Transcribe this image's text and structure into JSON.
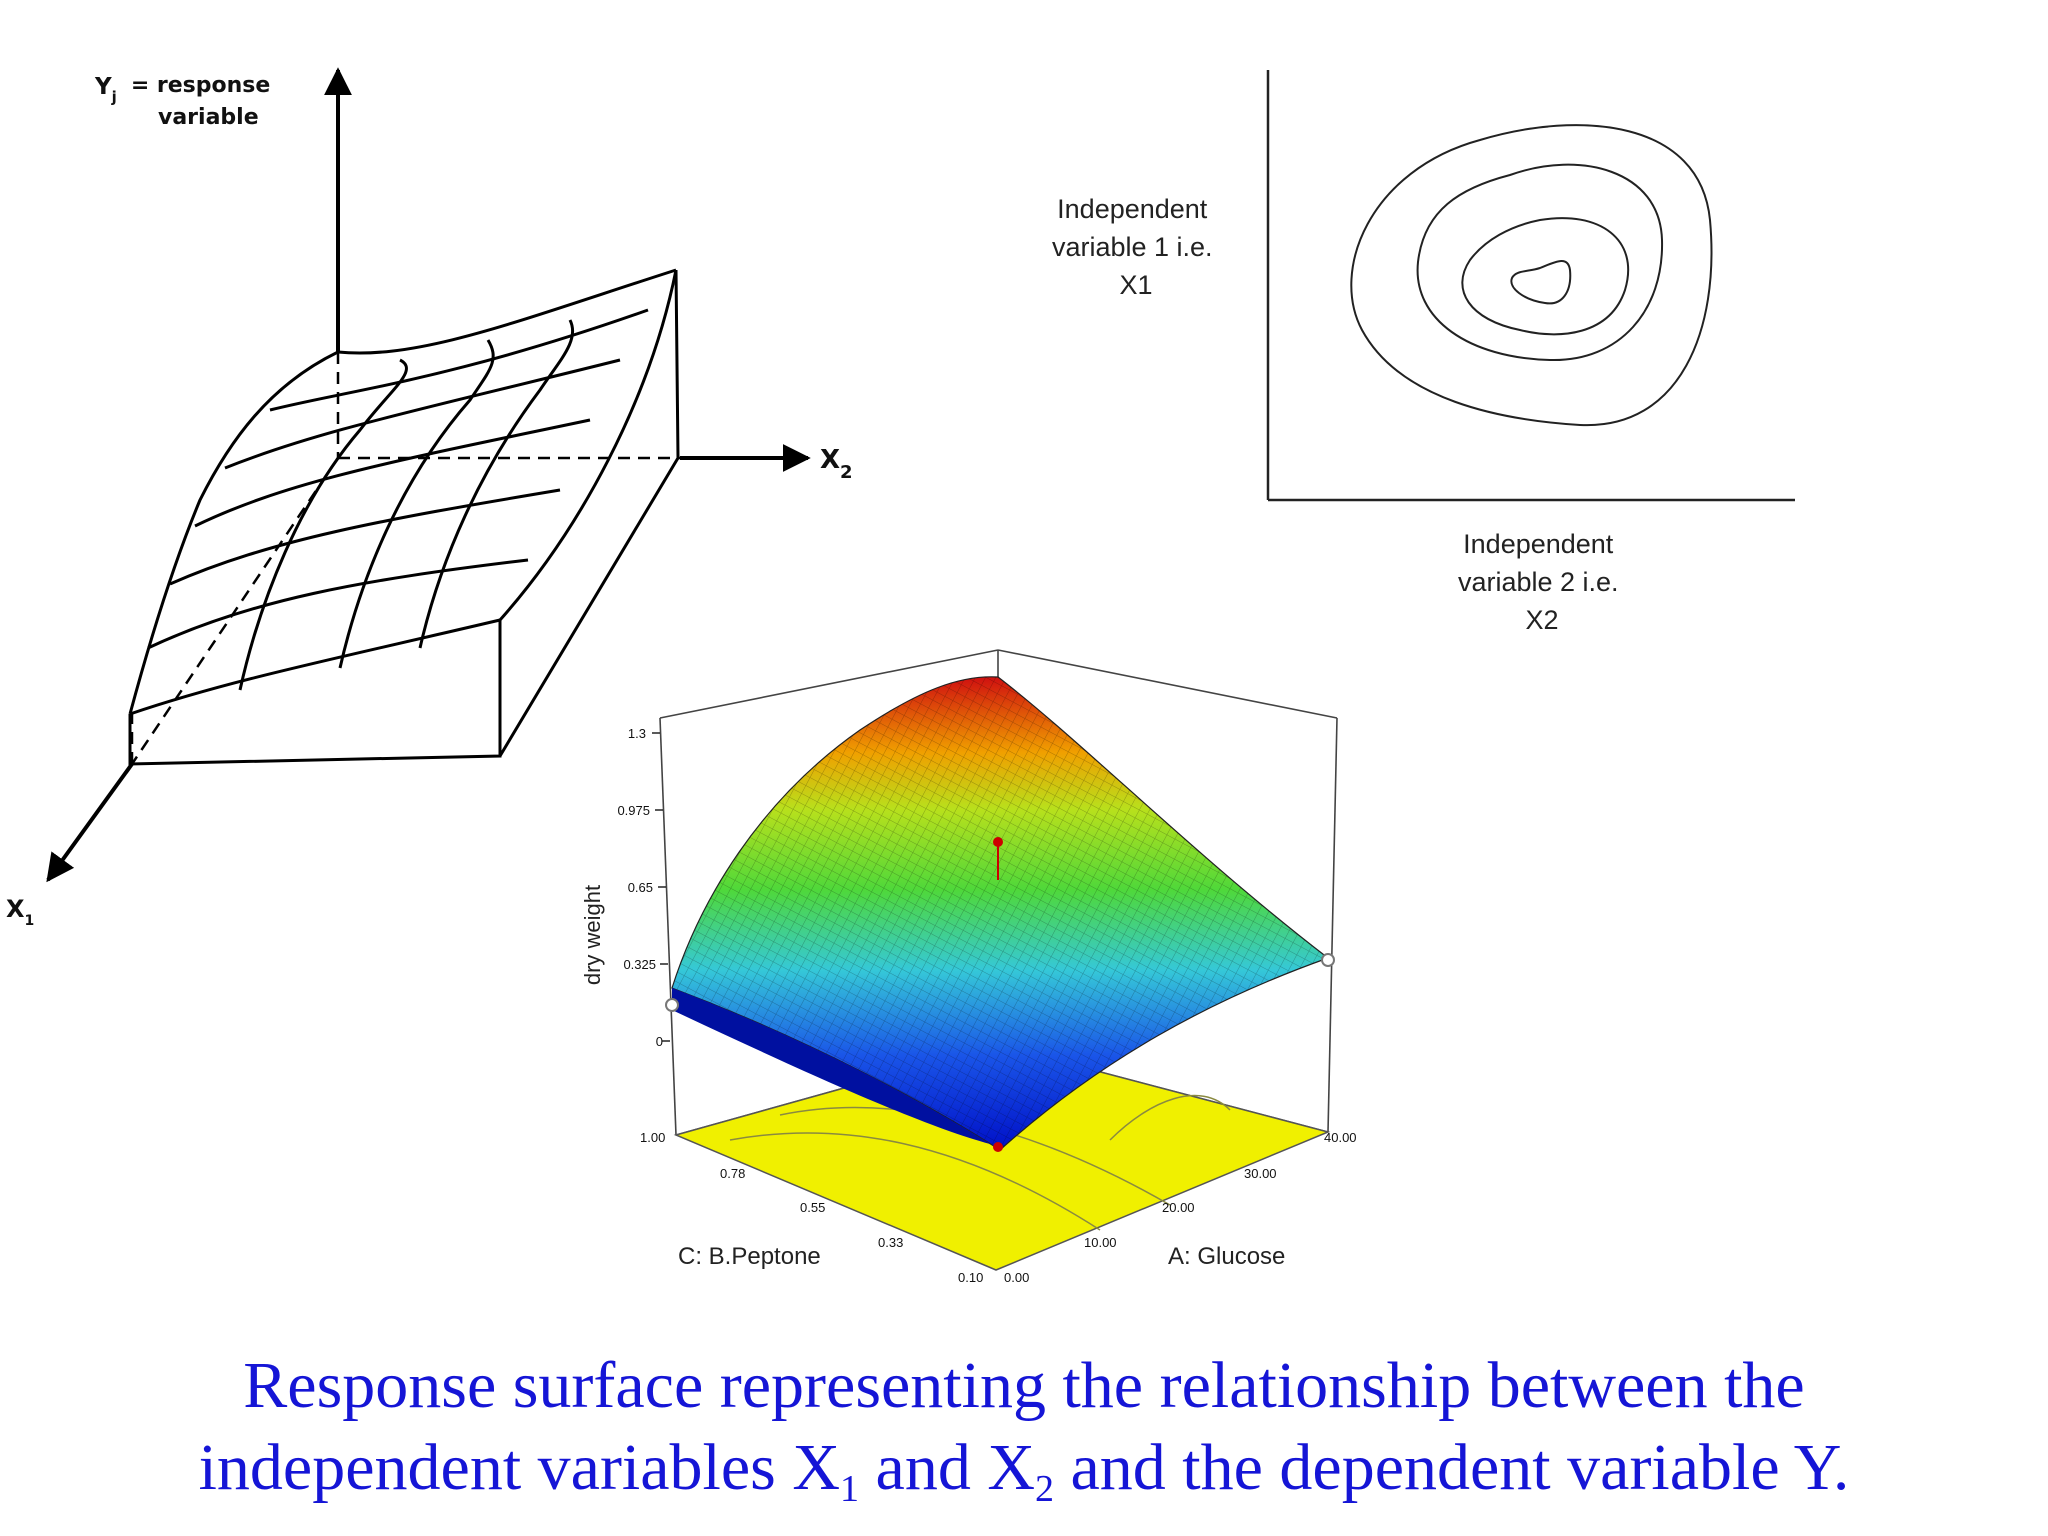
{
  "sketch": {
    "y_label_line1": "Y",
    "y_label_sub": "j",
    "y_label_rest": "= response",
    "y_label_line2": "variable",
    "x2_label_main": "X",
    "x2_label_sub": "2",
    "x1_label_main": "X",
    "x1_label_sub": "1"
  },
  "contour": {
    "y_label": [
      "Independent",
      "variable 1 i.e.",
      "X1"
    ],
    "x_label": [
      "Independent",
      "variable 2 i.e.",
      "X2"
    ]
  },
  "surface": {
    "z_label": "dry weight",
    "z_ticks": [
      "1.3",
      "0.975",
      "0.65",
      "0.325",
      "0"
    ],
    "c_label": "C: B.Peptone",
    "c_ticks": [
      "1.00",
      "0.78",
      "0.55",
      "0.33",
      "0.10"
    ],
    "a_label": "A: Glucose",
    "a_ticks": [
      "0.00",
      "10.00",
      "20.00",
      "30.00",
      "40.00"
    ]
  },
  "caption": {
    "part1": "Response surface representing the relationship between the",
    "part2": "independent variables X",
    "sub1": "1",
    "part3": " and X",
    "sub2": "2",
    "part4": " and the dependent variable Y."
  }
}
